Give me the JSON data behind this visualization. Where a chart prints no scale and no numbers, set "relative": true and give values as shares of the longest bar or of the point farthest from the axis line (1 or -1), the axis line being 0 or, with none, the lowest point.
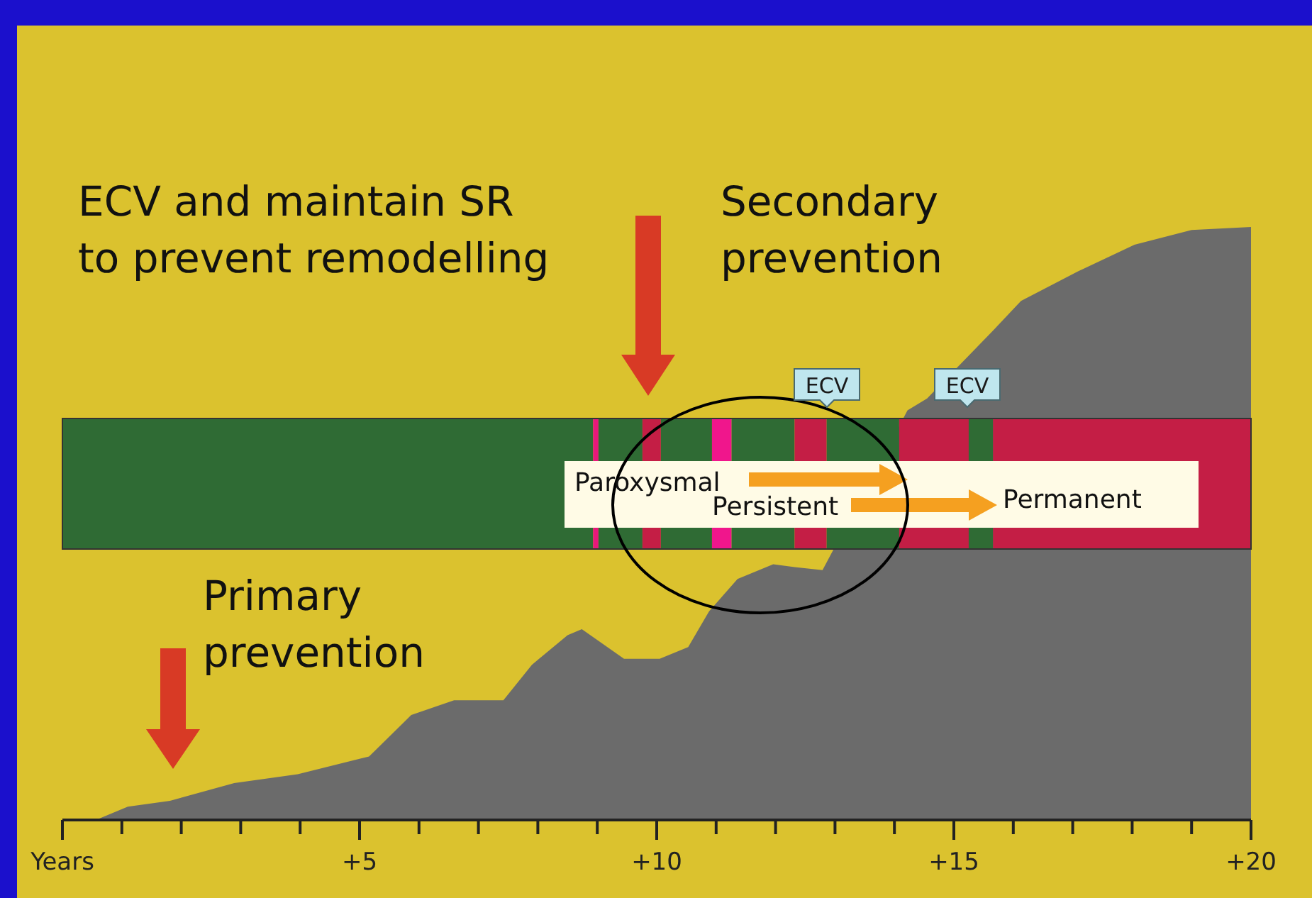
{
  "chart_data": {
    "type": "area",
    "relative": true,
    "color": "#6b6b6b",
    "legend": false,
    "grid": false,
    "x": [
      0.62,
      1.1,
      1.81,
      2.89,
      3.96,
      5.16,
      5.87,
      6.59,
      7.42,
      7.9,
      8.5,
      8.74,
      9.45,
      10.05,
      10.53,
      10.88,
      11.36,
      11.96,
      12.32,
      12.79,
      14.22,
      14.55,
      15.66,
      16.13,
      17.09,
      18.04,
      19.0,
      20.0
    ],
    "values": [
      0,
      0.02,
      0.03,
      0.06,
      0.075,
      0.105,
      0.175,
      0.2,
      0.2,
      0.26,
      0.31,
      0.32,
      0.27,
      0.27,
      0.29,
      0.35,
      0.405,
      0.43,
      0.425,
      0.42,
      0.69,
      0.71,
      0.825,
      0.875,
      0.925,
      0.97,
      0.995,
      1
    ],
    "xlim": [
      0,
      20
    ],
    "xticks": [
      {
        "value": 0,
        "label": "Years"
      },
      {
        "value": 1,
        "label": null
      },
      {
        "value": 2,
        "label": null
      },
      {
        "value": 3,
        "label": null
      },
      {
        "value": 4,
        "label": null
      },
      {
        "value": 5,
        "label": "+5"
      },
      {
        "value": 6,
        "label": null
      },
      {
        "value": 7,
        "label": null
      },
      {
        "value": 8,
        "label": null
      },
      {
        "value": 9,
        "label": null
      },
      {
        "value": 10,
        "label": "+10"
      },
      {
        "value": 11,
        "label": null
      },
      {
        "value": 12,
        "label": null
      },
      {
        "value": 13,
        "label": null
      },
      {
        "value": 14,
        "label": null
      },
      {
        "value": 15,
        "label": "+15"
      },
      {
        "value": 16,
        "label": null
      },
      {
        "value": 17,
        "label": null
      },
      {
        "value": 18,
        "label": null
      },
      {
        "value": 19,
        "label": null
      },
      {
        "value": 20,
        "label": "+20"
      }
    ],
    "bands": [
      {
        "axis": "x",
        "from": 0,
        "to": 8.93,
        "color": "#2f6b34"
      },
      {
        "axis": "x",
        "from": 8.93,
        "to": 9.02,
        "color": "#e8187c"
      },
      {
        "axis": "x",
        "from": 9.02,
        "to": 9.76,
        "color": "#2f6b34"
      },
      {
        "axis": "x",
        "from": 9.76,
        "to": 10.07,
        "color": "#c41e45"
      },
      {
        "axis": "x",
        "from": 10.07,
        "to": 10.93,
        "color": "#2f6b34"
      },
      {
        "axis": "x",
        "from": 10.93,
        "to": 11.26,
        "color": "#f0168c"
      },
      {
        "axis": "x",
        "from": 11.26,
        "to": 12.32,
        "color": "#2f6b34"
      },
      {
        "axis": "x",
        "from": 12.32,
        "to": 12.86,
        "color": "#c41e45"
      },
      {
        "axis": "x",
        "from": 12.86,
        "to": 14.08,
        "color": "#2f6b34"
      },
      {
        "axis": "x",
        "from": 14.08,
        "to": 15.25,
        "color": "#c41e45"
      },
      {
        "axis": "x",
        "from": 15.25,
        "to": 15.66,
        "color": "#2f6b34"
      },
      {
        "axis": "x",
        "from": 15.66,
        "to": 20,
        "color": "#c41e45"
      }
    ],
    "annotations": [
      "ECV and maintain SR\nto prevent remodelling",
      "Secondary\nprevention",
      "Primary\nprevention",
      "ECV",
      "ECV",
      "Paroxysmal",
      "Persistent",
      "Permanent"
    ]
  }
}
